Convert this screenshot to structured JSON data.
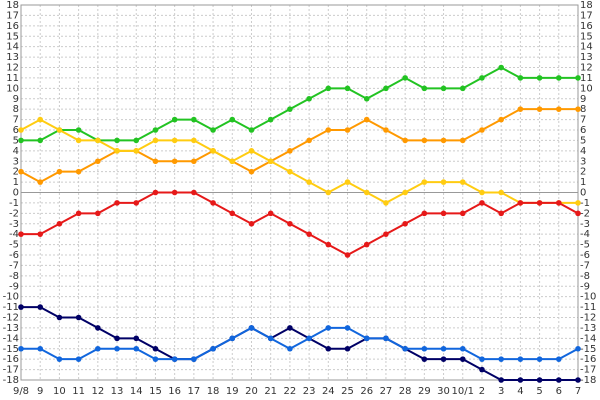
{
  "chart_data": {
    "type": "line",
    "categories": [
      "9/8",
      "9",
      "10",
      "11",
      "12",
      "13",
      "14",
      "15",
      "16",
      "17",
      "18",
      "19",
      "20",
      "21",
      "22",
      "23",
      "24",
      "25",
      "26",
      "27",
      "28",
      "29",
      "30",
      "10/1",
      "2",
      "3",
      "4",
      "5",
      "6",
      "7"
    ],
    "series": [
      {
        "color": "#22c322",
        "values": [
          5,
          5,
          6,
          6,
          5,
          5,
          5,
          6,
          7,
          7,
          6,
          7,
          6,
          7,
          8,
          9,
          10,
          10,
          9,
          10,
          11,
          10,
          10,
          10,
          11,
          12,
          11,
          11,
          11,
          11
        ]
      },
      {
        "color": "#ff9900",
        "values": [
          2,
          1,
          2,
          2,
          3,
          4,
          4,
          3,
          3,
          3,
          4,
          3,
          2,
          3,
          4,
          5,
          6,
          6,
          7,
          6,
          5,
          5,
          5,
          5,
          6,
          7,
          8,
          8,
          8,
          8
        ]
      },
      {
        "color": "#ffcc11",
        "values": [
          6,
          7,
          6,
          5,
          5,
          4,
          4,
          5,
          5,
          5,
          4,
          3,
          4,
          3,
          2,
          1,
          0,
          1,
          0,
          -1,
          0,
          1,
          1,
          1,
          0,
          0,
          -1,
          -1,
          -1,
          -1
        ]
      },
      {
        "color": "#e61919",
        "values": [
          -4,
          -4,
          -3,
          -2,
          -2,
          -1,
          -1,
          0,
          0,
          0,
          -1,
          -2,
          -3,
          -2,
          -3,
          -4,
          -5,
          -6,
          -5,
          -4,
          -3,
          -2,
          -2,
          -2,
          -1,
          -2,
          -1,
          -1,
          -1,
          -2
        ]
      },
      {
        "color": "#000066",
        "values": [
          -11,
          -11,
          -12,
          -12,
          -13,
          -14,
          -14,
          -15,
          -16,
          -16,
          -15,
          -14,
          -13,
          -14,
          -13,
          -14,
          -15,
          -15,
          -14,
          -14,
          -15,
          -16,
          -16,
          -16,
          -17,
          -18,
          -18,
          -18,
          -18,
          -18
        ]
      },
      {
        "color": "#1166dd",
        "values": [
          -15,
          -15,
          -16,
          -16,
          -15,
          -15,
          -15,
          -16,
          -16,
          -16,
          -15,
          -14,
          -13,
          -14,
          -15,
          -14,
          -13,
          -13,
          -14,
          -14,
          -15,
          -15,
          -15,
          -15,
          -16,
          -16,
          -16,
          -16,
          -16,
          -15
        ]
      }
    ],
    "ylim": [
      -18,
      18
    ],
    "yticks": [
      -18,
      -17,
      -16,
      -15,
      -14,
      -13,
      -12,
      -11,
      -10,
      -9,
      -8,
      -7,
      -6,
      -5,
      -4,
      -3,
      -2,
      -1,
      0,
      1,
      2,
      3,
      4,
      5,
      6,
      7,
      8,
      9,
      10,
      11,
      12,
      13,
      14,
      15,
      16,
      17,
      18
    ],
    "grid": true
  }
}
